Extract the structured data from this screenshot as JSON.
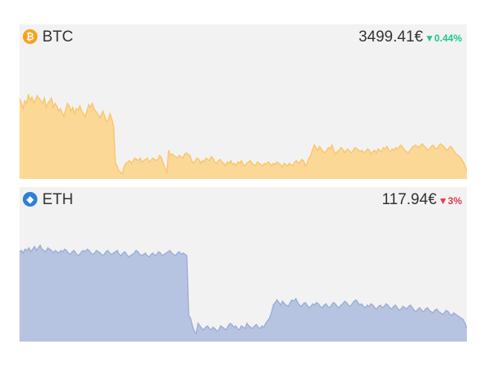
{
  "coins": {
    "btc": {
      "symbol": "BTC",
      "price": "3499.41€",
      "change": "▼0.44%",
      "icon": "bitcoin-icon",
      "icon_glyph": "₿",
      "icon_color": "#f7a21b",
      "change_color": "#1fc78f",
      "line_color": "#f9c66f",
      "fill_color": "#fcd897"
    },
    "eth": {
      "symbol": "ETH",
      "price": "117.94€",
      "change": "▼3%",
      "icon": "ethereum-icon",
      "icon_glyph": "◆",
      "icon_color": "#2f7fd6",
      "change_color": "#e8384f",
      "line_color": "#9fb0d6",
      "fill_color": "#b7c4e1"
    }
  },
  "chart_data": [
    {
      "type": "area",
      "series": [
        {
          "values": [
            62,
            58,
            54,
            60,
            58,
            65,
            60,
            63,
            58,
            61,
            64,
            62,
            60,
            58,
            62,
            55,
            58,
            60,
            62,
            55,
            58,
            56,
            52,
            54,
            51,
            48,
            53,
            58,
            56,
            52,
            55,
            50,
            54,
            53,
            56,
            52,
            50,
            48,
            52,
            57,
            55,
            58,
            54,
            52,
            50,
            47,
            49,
            52,
            48,
            44,
            45,
            50,
            46,
            40,
            12,
            10,
            6,
            5,
            4,
            10,
            12,
            13,
            14,
            12,
            14,
            16,
            15,
            14,
            16,
            13,
            14,
            15,
            16,
            13,
            14,
            16,
            15,
            14,
            15,
            18,
            16,
            12,
            8,
            5,
            22,
            18,
            19,
            18,
            17,
            16,
            18,
            17,
            16,
            19,
            20,
            19,
            18,
            14,
            12,
            14,
            16,
            15,
            12,
            14,
            13,
            16,
            15,
            14,
            17,
            16,
            13,
            12,
            14,
            15,
            13,
            12,
            10,
            13,
            12,
            14,
            11,
            12,
            10,
            13,
            12,
            14,
            11,
            10,
            12,
            13,
            14,
            12,
            11,
            10,
            13,
            12,
            11,
            10,
            12,
            11,
            13,
            12,
            10,
            12,
            11,
            13,
            12,
            11,
            9,
            12,
            11,
            10,
            12,
            11,
            10,
            13,
            14,
            12,
            13,
            15,
            14,
            10,
            12,
            16,
            18,
            22,
            26,
            24,
            22,
            25,
            23,
            21,
            20,
            22,
            24,
            23,
            26,
            22,
            19,
            21,
            22,
            24,
            23,
            20,
            22,
            23,
            21,
            20,
            22,
            24,
            23,
            22,
            21,
            22,
            20,
            21,
            23,
            22,
            19,
            21,
            22,
            20,
            23,
            22,
            21,
            24,
            23,
            25,
            22,
            21,
            23,
            22,
            24,
            23,
            25,
            26,
            24,
            22,
            21,
            20,
            22,
            24,
            25,
            26,
            25,
            24,
            26,
            27,
            25,
            24,
            22,
            23,
            25,
            26,
            24,
            23,
            25,
            27,
            26,
            25,
            23,
            22,
            24,
            25,
            23,
            21,
            19,
            18,
            17,
            15,
            13,
            10,
            6
          ]
        }
      ]
    },
    {
      "type": "area",
      "series": [
        {
          "values": [
            69,
            70,
            68,
            71,
            70,
            72,
            69,
            71,
            73,
            70,
            72,
            74,
            71,
            70,
            69,
            72,
            71,
            70,
            68,
            70,
            69,
            68,
            70,
            69,
            71,
            70,
            68,
            67,
            69,
            70,
            68,
            66,
            67,
            69,
            70,
            69,
            71,
            70,
            68,
            67,
            68,
            70,
            69,
            68,
            66,
            67,
            69,
            70,
            68,
            67,
            68,
            69,
            70,
            67,
            66,
            68,
            69,
            67,
            65,
            66,
            67,
            68,
            70,
            69,
            67,
            66,
            67,
            68,
            66,
            65,
            67,
            68,
            66,
            67,
            69,
            68,
            66,
            67,
            68,
            69,
            70,
            68,
            67,
            66,
            68,
            69,
            67,
            68,
            67,
            66,
            20,
            18,
            12,
            8,
            6,
            14,
            12,
            10,
            9,
            11,
            12,
            10,
            9,
            11,
            10,
            8,
            9,
            12,
            11,
            10,
            9,
            12,
            14,
            13,
            11,
            12,
            10,
            9,
            12,
            11,
            10,
            14,
            12,
            11,
            10,
            12,
            13,
            11,
            10,
            12,
            11,
            14,
            16,
            18,
            22,
            28,
            30,
            32,
            30,
            28,
            31,
            29,
            28,
            27,
            30,
            32,
            31,
            33,
            30,
            28,
            27,
            29,
            30,
            28,
            26,
            27,
            29,
            28,
            30,
            29,
            27,
            26,
            28,
            29,
            27,
            26,
            28,
            30,
            29,
            27,
            26,
            28,
            29,
            31,
            30,
            28,
            27,
            29,
            31,
            32,
            30,
            28,
            29,
            27,
            26,
            28,
            27,
            29,
            28,
            26,
            25,
            27,
            28,
            26,
            27,
            29,
            28,
            26,
            25,
            27,
            28,
            26,
            24,
            25,
            27,
            26,
            25,
            27,
            28,
            26,
            24,
            23,
            25,
            26,
            24,
            23,
            25,
            26,
            24,
            23,
            22,
            24,
            25,
            23,
            22,
            21,
            22,
            24,
            23,
            21,
            20,
            22,
            21,
            20,
            19,
            18,
            17,
            14,
            10
          ]
        }
      ]
    }
  ]
}
